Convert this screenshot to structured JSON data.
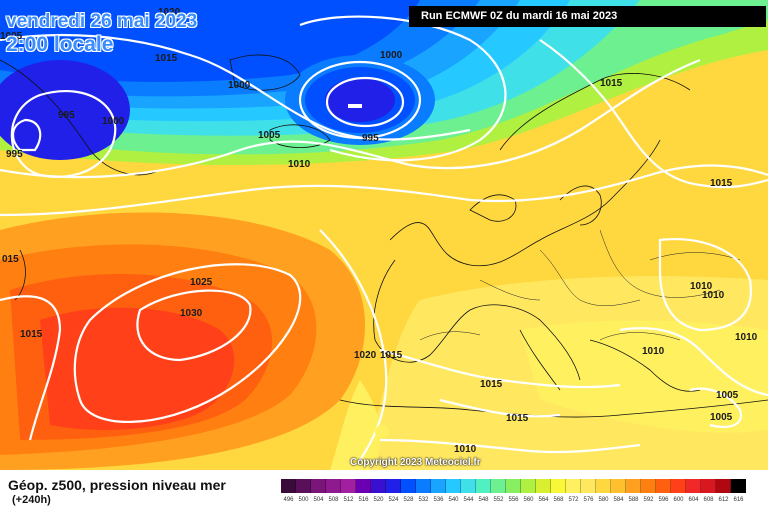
{
  "header": {
    "date": "vendredi 26 mai 2023",
    "local_time": "2:00 locale",
    "run_info": "Run ECMWF 0Z du mardi 16 mai 2023"
  },
  "copyright": "Copyright 2023 Meteociel.fr",
  "legend": {
    "title": "Géop. z500, pression niveau mer",
    "subtitle": "(+240h)",
    "scale_values": [
      "496",
      "500",
      "504",
      "508",
      "512",
      "516",
      "520",
      "524",
      "528",
      "532",
      "536",
      "540",
      "544",
      "548",
      "552",
      "556",
      "560",
      "564",
      "568",
      "572",
      "576",
      "580",
      "584",
      "588",
      "592",
      "596",
      "600",
      "604",
      "608",
      "612",
      "616"
    ],
    "scale_colors": [
      "#3a0a3a",
      "#5a0f5a",
      "#7a157a",
      "#8f1a8f",
      "#a21fa2",
      "#6b00b3",
      "#3a10d0",
      "#2020e8",
      "#0050ff",
      "#0a7cff",
      "#19a4ff",
      "#25c8ff",
      "#40e0e8",
      "#50f0c0",
      "#6df090",
      "#88f060",
      "#b0f040",
      "#d8f030",
      "#f8f838",
      "#fff060",
      "#ffe860",
      "#ffd840",
      "#ffc030",
      "#ffa020",
      "#ff8010",
      "#ff6010",
      "#ff4018",
      "#f02828",
      "#d81820",
      "#b00810",
      "#000000"
    ]
  },
  "isobar_labels": [
    {
      "text": "1015",
      "id": "nw-1015"
    },
    {
      "text": "1000",
      "id": "center-1000"
    },
    {
      "text": "995",
      "id": "low-995"
    },
    {
      "text": "1005",
      "id": "iceland-1005"
    },
    {
      "text": "1010",
      "id": "iceland-1010"
    },
    {
      "text": "1000",
      "id": "greenland-1000"
    },
    {
      "text": "995",
      "id": "greenland-995"
    },
    {
      "text": "1000",
      "id": "west-1000"
    },
    {
      "text": "995",
      "id": "far-west-995"
    },
    {
      "text": "1015",
      "id": "norway-1015"
    },
    {
      "text": "1015",
      "id": "russia-1015"
    },
    {
      "text": "1025",
      "id": "azores-1025"
    },
    {
      "text": "1030",
      "id": "azores-1030"
    },
    {
      "text": "1015",
      "id": "atlantic-1015"
    },
    {
      "text": "1020",
      "id": "iberia-1020"
    },
    {
      "text": "1015",
      "id": "iberia-1015"
    },
    {
      "text": "1015",
      "id": "med-1015"
    },
    {
      "text": "1015",
      "id": "africa-1015"
    },
    {
      "text": "1010",
      "id": "sahara-1010"
    },
    {
      "text": "1010",
      "id": "ukraine-1010a"
    },
    {
      "text": "1010",
      "id": "ukraine-1010b"
    },
    {
      "text": "1010",
      "id": "balkan-1010"
    },
    {
      "text": "1005",
      "id": "turkey-1005a"
    },
    {
      "text": "1005",
      "id": "turkey-1005b"
    },
    {
      "text": "1010",
      "id": "east-1010"
    },
    {
      "text": "015",
      "id": "edge-015"
    },
    {
      "text": "1020",
      "id": "top-1020"
    },
    {
      "text": "1005",
      "id": "top-left-1005"
    }
  ],
  "icons": {
    "map": "weather-map-icon"
  }
}
